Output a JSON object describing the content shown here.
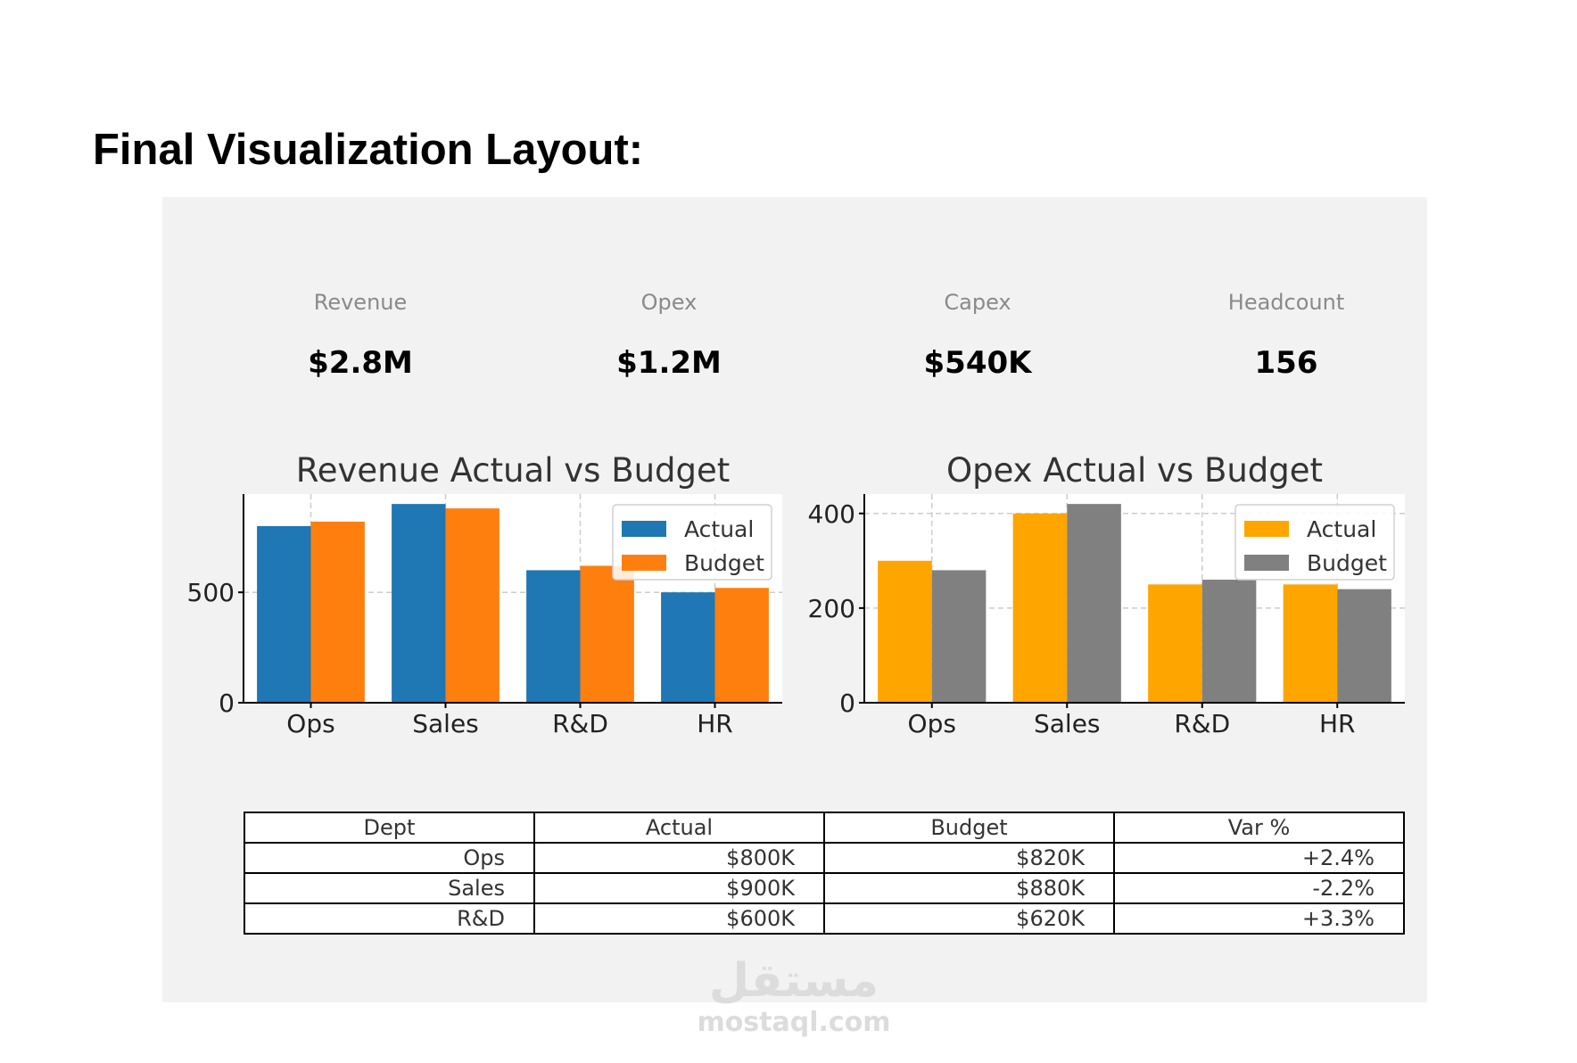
{
  "heading": "Final Visualization Layout:",
  "kpis": [
    {
      "label": "Revenue",
      "value": "$2.8M"
    },
    {
      "label": "Opex",
      "value": "$1.2M"
    },
    {
      "label": "Capex",
      "value": "$540K"
    },
    {
      "label": "Headcount",
      "value": "156"
    }
  ],
  "chart_data": [
    {
      "type": "bar",
      "title": "Revenue Actual vs Budget",
      "categories": [
        "Ops",
        "Sales",
        "R&D",
        "HR"
      ],
      "series": [
        {
          "name": "Actual",
          "values": [
            800,
            900,
            600,
            500
          ]
        },
        {
          "name": "Budget",
          "values": [
            820,
            880,
            620,
            520
          ]
        }
      ],
      "colors": [
        "#1f77b4",
        "#ff7f0e"
      ],
      "ylim": [
        0,
        945
      ],
      "yticks": [
        0,
        500
      ],
      "grid": true,
      "legend_position": "top-right"
    },
    {
      "type": "bar",
      "title": "Opex Actual vs Budget",
      "categories": [
        "Ops",
        "Sales",
        "R&D",
        "HR"
      ],
      "series": [
        {
          "name": "Actual",
          "values": [
            300,
            400,
            250,
            250
          ]
        },
        {
          "name": "Budget",
          "values": [
            280,
            420,
            260,
            240
          ]
        }
      ],
      "colors": [
        "#ffa500",
        "#808080"
      ],
      "ylim": [
        0,
        441
      ],
      "yticks": [
        0,
        200,
        400
      ],
      "grid": true,
      "legend_position": "top-right"
    }
  ],
  "table": {
    "headers": [
      "Dept",
      "Actual",
      "Budget",
      "Var %"
    ],
    "rows": [
      [
        "Ops",
        "$800K",
        "$820K",
        "+2.4%"
      ],
      [
        "Sales",
        "$900K",
        "$880K",
        "-2.2%"
      ],
      [
        "R&D",
        "$600K",
        "$620K",
        "+3.3%"
      ]
    ]
  },
  "watermark": {
    "logo": "مستقل",
    "text": "mostaql.com"
  }
}
